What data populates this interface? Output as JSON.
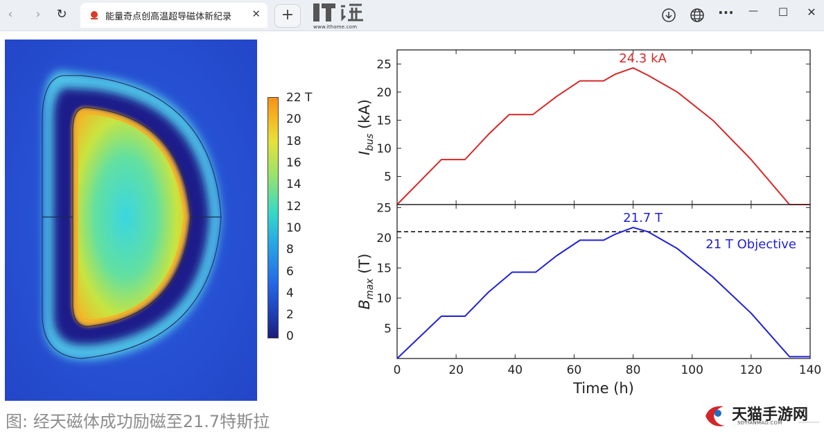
{
  "browser": {
    "tab_title": "能量奇点创高温超导磁体新纪录",
    "tab_close": "✕",
    "new_tab": "+",
    "nav": {
      "back": "‹",
      "forward": "›",
      "refresh": "↻"
    },
    "site_logo_text": "www.ithome.com",
    "toolbar": {
      "more": "···",
      "minimize": "—",
      "maximize": "☐",
      "close": "✕"
    }
  },
  "colorbar": {
    "labels": [
      "22 T",
      "20",
      "18",
      "16",
      "14",
      "12",
      "10",
      "8",
      "6",
      "4",
      "2",
      "0"
    ],
    "min": 0,
    "max": 22
  },
  "chart_data": [
    {
      "type": "line",
      "ylabel_main": "I",
      "ylabel_sub": "bus",
      "ylabel_unit": " (kA)",
      "xlim": [
        0,
        140
      ],
      "ylim": [
        0,
        27.5
      ],
      "yticks": [
        5,
        10,
        15,
        20,
        25
      ],
      "annotation": "24.3 kA",
      "annotation_at": [
        80,
        24.3
      ],
      "color": "#d62728",
      "x": [
        0,
        15,
        23,
        31,
        38,
        46,
        54,
        62,
        70,
        74,
        80,
        85,
        95,
        107,
        120,
        133,
        140
      ],
      "y": [
        0,
        8,
        8,
        12.5,
        16,
        16,
        19.2,
        22,
        22,
        23.2,
        24.3,
        23,
        20,
        15,
        8,
        0,
        0
      ]
    },
    {
      "type": "line",
      "ylabel_main": "B",
      "ylabel_sub": "max",
      "ylabel_unit": " (T)",
      "xlabel": "Time (h)",
      "xlim": [
        0,
        140
      ],
      "ylim": [
        0,
        25.5
      ],
      "yticks": [
        5,
        10,
        15,
        20,
        25
      ],
      "xticks": [
        0,
        20,
        40,
        60,
        80,
        100,
        120,
        140
      ],
      "annotation": "21.7 T",
      "annotation_at": [
        80,
        21.7
      ],
      "reference_line": {
        "y": 21,
        "label": "21 T Objective"
      },
      "color": "#1f1fd6",
      "x": [
        0,
        15,
        23,
        31,
        39,
        47,
        54,
        62,
        70,
        74,
        80,
        85,
        95,
        107,
        120,
        133,
        140
      ],
      "y": [
        0,
        7,
        7,
        11,
        14.3,
        14.3,
        17,
        19.6,
        19.6,
        20.6,
        21.7,
        21,
        18.2,
        13.5,
        7.5,
        0.3,
        0.3
      ]
    }
  ],
  "caption": "图: 经天磁体成功励磁至21.7特斯拉",
  "watermark": {
    "title": "天猫手游网",
    "subtitle": "SDTIANMAO.COM"
  }
}
